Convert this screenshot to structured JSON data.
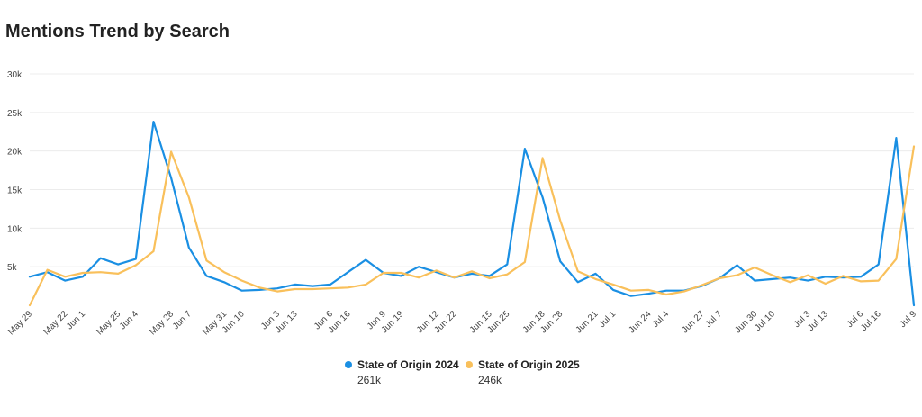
{
  "chart_data": {
    "type": "line",
    "title": "Mentions Trend by Search",
    "y_ticks": [
      "",
      "5k",
      "10k",
      "15k",
      "20k",
      "25k",
      "30k"
    ],
    "ylim": [
      0,
      30000
    ],
    "grid": true,
    "legend_position": "bottom",
    "series": [
      {
        "name": "State of Origin 2024",
        "total": "261k",
        "color": "#1a8fe3",
        "x_labels": [
          "May 29",
          "Jun 1",
          "Jun 4",
          "Jun 7",
          "Jun 10",
          "Jun 13",
          "Jun 16",
          "Jun 19",
          "Jun 22",
          "Jun 25",
          "Jun 28",
          "Jul 1",
          "Jul 4",
          "Jul 7",
          "Jul 10",
          "Jul 13",
          "Jul 16"
        ],
        "values": [
          3700,
          4300,
          3200,
          3700,
          6100,
          5300,
          6000,
          23800,
          16500,
          7500,
          3800,
          3000,
          1900,
          2000,
          2200,
          2700,
          2500,
          2700,
          4300,
          5900,
          4200,
          3800,
          5000,
          4300,
          3600,
          4100,
          3800,
          5300,
          20300,
          14000,
          5700,
          3000,
          4100,
          2000,
          1200,
          1500,
          1900,
          1900,
          2500,
          3500,
          5200,
          3200,
          3400,
          3600,
          3200,
          3700,
          3600,
          3700,
          5300,
          21700,
          0
        ]
      },
      {
        "name": "State of Origin 2025",
        "total": "246k",
        "color": "#f9c05b",
        "x_labels": [
          "May 22",
          "May 25",
          "May 28",
          "May 31",
          "Jun 3",
          "Jun 6",
          "Jun 9",
          "Jun 12",
          "Jun 15",
          "Jun 18",
          "Jun 21",
          "Jun 24",
          "Jun 27",
          "Jun 30",
          "Jul 3",
          "Jul 6",
          "Jul 9"
        ],
        "values": [
          0,
          4600,
          3700,
          4200,
          4300,
          4100,
          5200,
          7000,
          19900,
          14000,
          5800,
          4300,
          3200,
          2300,
          1800,
          2100,
          2100,
          2200,
          2300,
          2700,
          4200,
          4200,
          3600,
          4500,
          3600,
          4400,
          3500,
          4000,
          5600,
          19100,
          11000,
          4400,
          3400,
          2700,
          1900,
          2000,
          1400,
          1800,
          2600,
          3500,
          3900,
          4900,
          3900,
          3000,
          3900,
          2800,
          3800,
          3100,
          3200,
          6000,
          20600
        ]
      }
    ]
  }
}
